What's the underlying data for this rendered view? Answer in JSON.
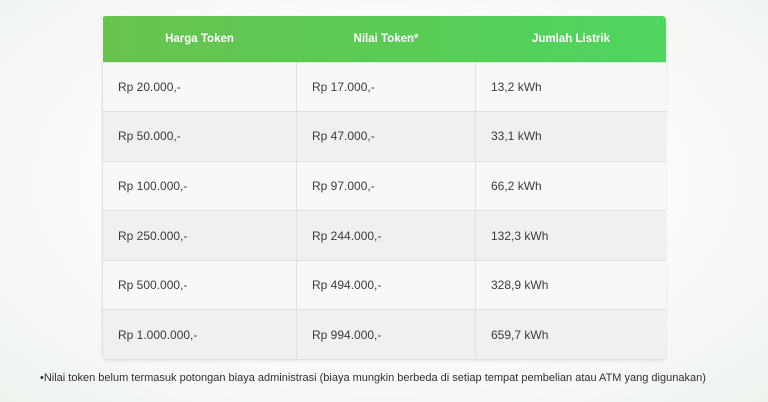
{
  "table": {
    "headers": [
      "Harga Token",
      "Nilai Token*",
      "Jumlah Listrik"
    ],
    "rows": [
      [
        "Rp 20.000,-",
        "Rp 17.000,-",
        "13,2 kWh"
      ],
      [
        "Rp 50.000,-",
        "Rp 47.000,-",
        "33,1 kWh"
      ],
      [
        "Rp 100.000,-",
        "Rp 97.000,-",
        "66,2 kWh"
      ],
      [
        "Rp 250.000,-",
        "Rp 244.000,-",
        "132,3 kWh"
      ],
      [
        "Rp 500.000,-",
        "Rp 494.000,-",
        "328,9 kWh"
      ],
      [
        "Rp 1.000.000,-",
        "Rp 994.000,-",
        "659,7 kWh"
      ]
    ]
  },
  "footnote": "•Nilai token belum termasuk potongan biaya administrasi (biaya mungkin berbeda di setiap tempat pembelian atau ATM yang digunakan)",
  "colors": {
    "header_gradient_start": "#67c34f",
    "header_gradient_end": "#4fd661",
    "header_text": "#ffffff"
  }
}
